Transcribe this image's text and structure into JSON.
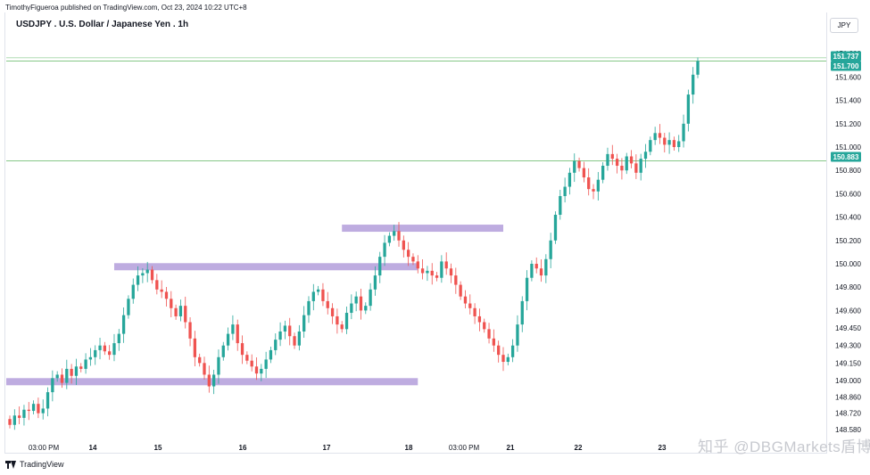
{
  "header": {
    "publisher_line": "TimothyFigueroa published on TradingView.com, Oct 23, 2024 10:22 UTC+8",
    "title": "USDJPY . U.S. Dollar / Japanese Yen . 1h",
    "currency": "JPY"
  },
  "footer": {
    "logo_text": "TradingView"
  },
  "watermark": {
    "text": "知乎 @DBGMarkets盾博"
  },
  "colors": {
    "up": "#26a69a",
    "down": "#ef5350",
    "zone": "#b39ddb",
    "level_line": "#4caf50",
    "price_badge": "#26a69a"
  },
  "chart_data": {
    "type": "candlestick",
    "title": "USDJPY . U.S. Dollar / Japanese Yen . 1h",
    "ylim": [
      148.58,
      151.84
    ],
    "x_ticks": [
      "03:00 PM",
      "14",
      "15",
      "16",
      "17",
      "18",
      "03:00 PM",
      "21",
      "22",
      "23"
    ],
    "y_ticks": [
      151.8,
      151.6,
      151.4,
      151.2,
      151.0,
      150.8,
      150.6,
      150.4,
      150.2,
      150.0,
      149.8,
      149.6,
      149.45,
      149.3,
      149.15,
      149.0,
      148.86,
      148.72,
      148.58
    ],
    "y_tick_labels": [
      "151.800",
      "151.600",
      "151.400",
      "151.200",
      "151.000",
      "150.800",
      "150.600",
      "150.400",
      "150.200",
      "150.000",
      "149.800",
      "149.600",
      "149.450",
      "149.300",
      "149.150",
      "149.000",
      "148.860",
      "148.720",
      "148.580"
    ],
    "price_badges": [
      {
        "value": 151.737,
        "label": "151.737"
      },
      {
        "value": 151.7,
        "label": "151.700"
      },
      {
        "value": 150.883,
        "label": "150.883"
      }
    ],
    "horizontal_lines": [
      151.765,
      151.737,
      150.883
    ],
    "zones": [
      {
        "price": 150.305,
        "start": 70,
        "end": 104
      },
      {
        "price": 149.975,
        "start": 22,
        "end": 86
      },
      {
        "price": 148.99,
        "start": 0,
        "end": 86
      }
    ],
    "closes": [
      148.62,
      148.7,
      148.68,
      148.75,
      148.74,
      148.8,
      148.72,
      148.76,
      148.9,
      149.02,
      149.05,
      148.98,
      149.1,
      149.04,
      149.12,
      149.1,
      149.18,
      149.2,
      149.26,
      149.3,
      149.25,
      149.22,
      149.32,
      149.4,
      149.56,
      149.7,
      149.82,
      149.9,
      149.92,
      149.95,
      149.86,
      149.78,
      149.76,
      149.7,
      149.62,
      149.55,
      149.64,
      149.5,
      149.36,
      149.2,
      149.15,
      149.05,
      148.95,
      149.05,
      149.2,
      149.3,
      149.4,
      149.48,
      149.32,
      149.22,
      149.17,
      149.12,
      149.06,
      149.1,
      149.18,
      149.26,
      149.35,
      149.42,
      149.47,
      149.38,
      149.3,
      149.42,
      149.56,
      149.68,
      149.76,
      149.78,
      149.68,
      149.62,
      149.55,
      149.48,
      149.44,
      149.58,
      149.66,
      149.72,
      149.6,
      149.64,
      149.78,
      149.9,
      150.06,
      150.18,
      150.24,
      150.28,
      150.2,
      150.12,
      150.06,
      150.02,
      149.96,
      149.92,
      149.94,
      149.9,
      149.88,
      150.02,
      149.96,
      149.9,
      149.82,
      149.72,
      149.66,
      149.62,
      149.55,
      149.5,
      149.44,
      149.36,
      149.3,
      149.22,
      149.16,
      149.2,
      149.3,
      149.48,
      149.68,
      149.88,
      150.0,
      149.96,
      149.9,
      150.04,
      150.2,
      150.42,
      150.58,
      150.66,
      150.78,
      150.88,
      150.82,
      150.74,
      150.64,
      150.62,
      150.72,
      150.84,
      150.94,
      150.9,
      150.84,
      150.8,
      150.92,
      150.86,
      150.78,
      150.9,
      150.96,
      151.06,
      151.12,
      151.08,
      151.02,
      151.06,
      151.0,
      151.05,
      151.2,
      151.45,
      151.62,
      151.737
    ]
  }
}
